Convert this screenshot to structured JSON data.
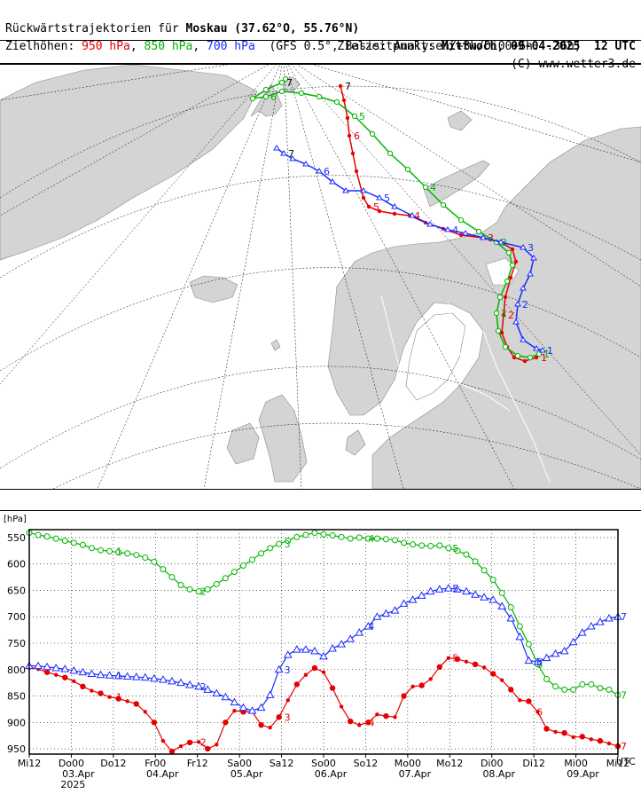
{
  "header": {
    "title_prefix": "Rückwärtstrajektorien für ",
    "title_place": "Moskau (37.62°O, 55.76°N)",
    "target_label": "Zielzeitpunkt: ",
    "target_value": "Mittwoch, 09-04-2025",
    "target_time": "12 UTC",
    "levels_label": "Zielhöhen: ",
    "level_950": "950 hPa",
    "level_850": "850 hPa",
    "level_700": "700 hPa",
    "sep": ", ",
    "basis": "(GFS 0.5°, Basis: Analysen/+3h/Di00+6h...36h)",
    "copyright": "(C) www.wetter3.de"
  },
  "colors": {
    "red": "#e60000",
    "green": "#00b400",
    "blue": "#1a2bff",
    "land": "#d4d4d4",
    "grid": "#000000"
  },
  "chart_data": {
    "type": "line",
    "ylabel": "[hPa]",
    "xunit": "UTC",
    "ylim": [
      960,
      535
    ],
    "y_inverted": true,
    "yticks": [
      550,
      600,
      650,
      700,
      750,
      800,
      850,
      900,
      950
    ],
    "xticks": [
      {
        "t": 0,
        "label": "Mi12",
        "date": ""
      },
      {
        "t": 12,
        "label": "Do00",
        "date": "03.Apr",
        "year": "2025"
      },
      {
        "t": 24,
        "label": "Do12",
        "date": ""
      },
      {
        "t": 36,
        "label": "Fr00",
        "date": "04.Apr"
      },
      {
        "t": 48,
        "label": "Fr12",
        "date": ""
      },
      {
        "t": 60,
        "label": "Sa00",
        "date": "05.Apr"
      },
      {
        "t": 72,
        "label": "Sa12",
        "date": ""
      },
      {
        "t": 84,
        "label": "So00",
        "date": "06.Apr"
      },
      {
        "t": 96,
        "label": "So12",
        "date": ""
      },
      {
        "t": 108,
        "label": "Mo00",
        "date": "07.Apr"
      },
      {
        "t": 120,
        "label": "Mo12",
        "date": ""
      },
      {
        "t": 132,
        "label": "Di00",
        "date": "08.Apr"
      },
      {
        "t": 144,
        "label": "Di12",
        "date": ""
      },
      {
        "t": 156,
        "label": "Mi00",
        "date": "09.Apr"
      },
      {
        "t": 168,
        "label": "Mi12",
        "date": ""
      }
    ],
    "xlim": [
      0,
      168
    ],
    "series": [
      {
        "name": "950 hPa",
        "color": "#e60000",
        "marker": "filled-circle",
        "values": [
          795,
          799,
          805,
          810,
          815,
          822,
          832,
          840,
          845,
          852,
          855,
          860,
          865,
          880,
          900,
          935,
          955,
          945,
          938,
          937,
          950,
          942,
          900,
          878,
          880,
          880,
          905,
          910,
          890,
          858,
          828,
          810,
          797,
          805,
          835,
          870,
          898,
          905,
          900,
          885,
          888,
          890,
          850,
          832,
          830,
          818,
          795,
          778,
          780,
          785,
          790,
          796,
          808,
          820,
          838,
          858,
          860,
          880,
          912,
          918,
          920,
          928,
          927,
          932,
          935,
          940,
          945
        ],
        "markers": [
          {
            "t": 24,
            "label": "1"
          },
          {
            "t": 48,
            "label": "2"
          },
          {
            "t": 72,
            "label": "3"
          },
          {
            "t": 96,
            "label": "4"
          },
          {
            "t": 120,
            "label": "5"
          },
          {
            "t": 144,
            "label": "6"
          },
          {
            "t": 168,
            "label": "7"
          }
        ]
      },
      {
        "name": "850 hPa",
        "color": "#00b400",
        "marker": "open-circle",
        "values": [
          541,
          545,
          548,
          552,
          556,
          560,
          564,
          570,
          574,
          576,
          578,
          580,
          583,
          588,
          596,
          610,
          625,
          640,
          648,
          652,
          648,
          638,
          627,
          615,
          603,
          592,
          580,
          570,
          562,
          556,
          549,
          545,
          541,
          544,
          546,
          549,
          552,
          550,
          552,
          552,
          553,
          555,
          560,
          563,
          565,
          566,
          565,
          570,
          575,
          582,
          595,
          612,
          630,
          655,
          682,
          718,
          752,
          790,
          818,
          832,
          838,
          838,
          828,
          828,
          835,
          838,
          848
        ],
        "markers": [
          {
            "t": 24,
            "label": "1"
          },
          {
            "t": 48,
            "label": "2"
          },
          {
            "t": 72,
            "label": "3"
          },
          {
            "t": 96,
            "label": "4"
          },
          {
            "t": 120,
            "label": "5"
          },
          {
            "t": 144,
            "label": "6"
          },
          {
            "t": 168,
            "label": "7"
          }
        ]
      },
      {
        "name": "700 hPa",
        "color": "#1a2bff",
        "marker": "open-triangle",
        "values": [
          793,
          793,
          795,
          797,
          799,
          802,
          805,
          808,
          810,
          811,
          812,
          813,
          814,
          815,
          817,
          819,
          822,
          825,
          829,
          832,
          838,
          845,
          852,
          862,
          872,
          878,
          872,
          848,
          800,
          772,
          762,
          762,
          765,
          775,
          760,
          752,
          742,
          730,
          718,
          700,
          694,
          688,
          675,
          668,
          660,
          652,
          648,
          646,
          648,
          652,
          658,
          663,
          668,
          680,
          703,
          738,
          783,
          785,
          778,
          770,
          765,
          748,
          730,
          718,
          710,
          703,
          700
        ],
        "markers": [
          {
            "t": 24,
            "label": "1"
          },
          {
            "t": 48,
            "label": "2"
          },
          {
            "t": 72,
            "label": "3"
          },
          {
            "t": 96,
            "label": "4"
          },
          {
            "t": 120,
            "label": "5"
          },
          {
            "t": 144,
            "label": "6"
          },
          {
            "t": 168,
            "label": "7"
          }
        ]
      }
    ]
  },
  "map": {
    "trajectories": [
      {
        "name": "950 hPa",
        "color": "#e60000",
        "labels": [
          "1",
          "2",
          "3",
          "4",
          "5",
          "6",
          "7"
        ]
      },
      {
        "name": "850 hPa",
        "color": "#00b400",
        "labels": [
          "1",
          "2",
          "3",
          "4",
          "5",
          "6",
          "7"
        ]
      },
      {
        "name": "700 hPa",
        "color": "#1a2bff",
        "labels": [
          "1",
          "2",
          "3",
          "4",
          "5",
          "6",
          "7"
        ]
      }
    ]
  }
}
